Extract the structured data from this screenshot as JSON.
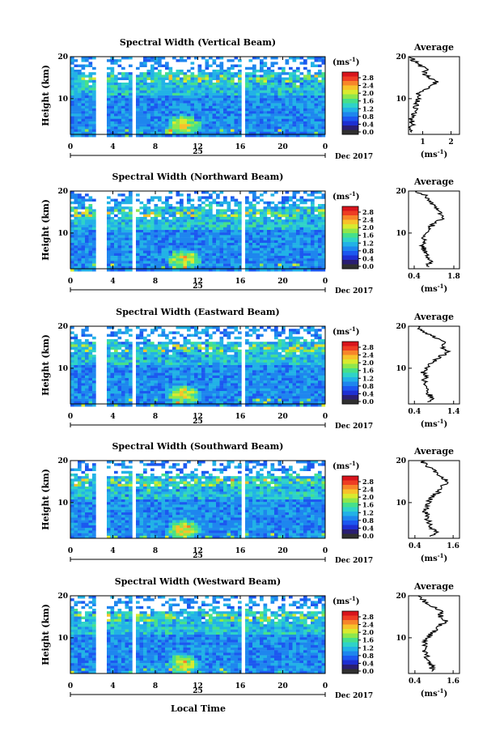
{
  "chart_data": [
    {
      "type": "heatmap",
      "title": "Spectral Width (Vertical Beam)",
      "ylabel": "Height (km)",
      "xticks": [
        "0",
        "4",
        "8",
        "12",
        "16",
        "20",
        "0"
      ],
      "yticks": [
        "20",
        "10"
      ],
      "day_label": "25",
      "month_label": "Dec 2017",
      "colorbar": {
        "unit": "(ms",
        "unit_exp": "-1",
        "unit_close": ")",
        "ticks": [
          "2.8",
          "2.4",
          "2.0",
          "1.6",
          "1.2",
          "0.8",
          "0.4",
          "0.0"
        ]
      },
      "gaps_hours": [
        [
          2.4,
          3.4
        ],
        [
          5.5,
          5.9
        ],
        [
          15.9,
          16.4
        ],
        [
          17.5,
          17.8
        ]
      ],
      "xlim": [
        0,
        24
      ],
      "ylim": [
        1.5,
        20
      ],
      "avg": {
        "title": "Average",
        "xticks": [
          "1",
          "2"
        ],
        "xtick_vals": [
          1,
          2
        ],
        "xlim": [
          0.5,
          2.3
        ],
        "yticks": [
          "20",
          "10"
        ],
        "xlabel": "(ms",
        "xlabel_exp": "-1",
        "xlabel_close": ")",
        "profile": [
          [
            2,
            0.62
          ],
          [
            3,
            0.6
          ],
          [
            4,
            0.64
          ],
          [
            5,
            0.58
          ],
          [
            6,
            0.7
          ],
          [
            7,
            0.75
          ],
          [
            8,
            0.72
          ],
          [
            9,
            0.8
          ],
          [
            10,
            0.85
          ],
          [
            11,
            0.82
          ],
          [
            12,
            1.0
          ],
          [
            13,
            1.25
          ],
          [
            14,
            1.5
          ],
          [
            15,
            1.2
          ],
          [
            16,
            1.05
          ],
          [
            17,
            1.1
          ],
          [
            18,
            0.9
          ],
          [
            19,
            0.7
          ],
          [
            20,
            0.55
          ]
        ]
      }
    },
    {
      "type": "heatmap",
      "title": "Spectral Width (Northward Beam)",
      "ylabel": "Height (km)",
      "xticks": [
        "0",
        "4",
        "8",
        "12",
        "16",
        "20",
        "0"
      ],
      "yticks": [
        "20",
        "10"
      ],
      "day_label": "25",
      "month_label": "Dec 2017",
      "colorbar": {
        "unit": "(ms",
        "unit_exp": "-1",
        "unit_close": ")",
        "ticks": [
          "2.8",
          "2.4",
          "2.0",
          "1.6",
          "1.2",
          "0.8",
          "0.4",
          "0.0"
        ]
      },
      "gaps_hours": [
        [
          2.4,
          3.4
        ],
        [
          5.5,
          5.9
        ],
        [
          15.9,
          16.4
        ],
        [
          17.5,
          17.8
        ]
      ],
      "xlim": [
        0,
        24
      ],
      "ylim": [
        1.5,
        20
      ],
      "avg": {
        "title": "Average",
        "xticks": [
          "0.4",
          "1.8"
        ],
        "xtick_vals": [
          0.4,
          1.8
        ],
        "xlim": [
          0.2,
          2.0
        ],
        "yticks": [
          "20",
          "10"
        ],
        "xlabel": "(ms",
        "xlabel_exp": "-1",
        "xlabel_close": ")",
        "profile": [
          [
            2,
            0.85
          ],
          [
            3,
            1.0
          ],
          [
            4,
            0.9
          ],
          [
            5,
            0.85
          ],
          [
            6,
            0.75
          ],
          [
            7,
            0.7
          ],
          [
            8,
            0.75
          ],
          [
            9,
            0.7
          ],
          [
            10,
            0.8
          ],
          [
            11,
            0.9
          ],
          [
            12,
            1.05
          ],
          [
            13,
            1.3
          ],
          [
            14,
            1.5
          ],
          [
            15,
            1.25
          ],
          [
            16,
            1.2
          ],
          [
            17,
            1.0
          ],
          [
            18,
            0.85
          ],
          [
            19,
            0.75
          ],
          [
            20,
            0.5
          ]
        ]
      }
    },
    {
      "type": "heatmap",
      "title": "Spectral Width (Eastward Beam)",
      "ylabel": "Height (km)",
      "xticks": [
        "0",
        "4",
        "8",
        "12",
        "16",
        "20",
        "0"
      ],
      "yticks": [
        "20",
        "10"
      ],
      "day_label": "25",
      "month_label": "Dec 2017",
      "colorbar": {
        "unit": "(ms",
        "unit_exp": "-1",
        "unit_close": ")",
        "ticks": [
          "2.8",
          "2.4",
          "2.0",
          "1.6",
          "1.2",
          "0.8",
          "0.4",
          "0.0"
        ]
      },
      "gaps_hours": [
        [
          2.4,
          3.4
        ],
        [
          5.5,
          5.9
        ],
        [
          15.9,
          16.4
        ],
        [
          17.5,
          17.8
        ]
      ],
      "xlim": [
        0,
        24
      ],
      "ylim": [
        1.5,
        20
      ],
      "avg": {
        "title": "Average",
        "xticks": [
          "0.4",
          "1.4"
        ],
        "xtick_vals": [
          0.4,
          1.4
        ],
        "xlim": [
          0.25,
          1.55
        ],
        "yticks": [
          "20",
          "10"
        ],
        "xlabel": "(ms",
        "xlabel_exp": "-1",
        "xlabel_close": ")",
        "profile": [
          [
            2,
            0.8
          ],
          [
            3,
            0.85
          ],
          [
            4,
            0.75
          ],
          [
            5,
            0.7
          ],
          [
            6,
            0.72
          ],
          [
            7,
            0.65
          ],
          [
            8,
            0.68
          ],
          [
            9,
            0.62
          ],
          [
            10,
            0.7
          ],
          [
            11,
            0.8
          ],
          [
            12,
            0.95
          ],
          [
            13,
            1.1
          ],
          [
            14,
            1.25
          ],
          [
            15,
            1.1
          ],
          [
            16,
            1.2
          ],
          [
            17,
            1.0
          ],
          [
            18,
            0.8
          ],
          [
            19,
            0.6
          ],
          [
            20,
            0.5
          ]
        ]
      }
    },
    {
      "type": "heatmap",
      "title": "Spectral Width (Southward Beam)",
      "ylabel": "Height (km)",
      "xticks": [
        "0",
        "4",
        "8",
        "12",
        "16",
        "20",
        "0"
      ],
      "yticks": [
        "20",
        "10"
      ],
      "day_label": "25",
      "month_label": "Dec 2017",
      "colorbar": {
        "unit": "(ms",
        "unit_exp": "-1",
        "unit_close": ")",
        "ticks": [
          "2.8",
          "2.4",
          "2.0",
          "1.6",
          "1.2",
          "0.8",
          "0.4",
          "0.0"
        ]
      },
      "gaps_hours": [
        [
          2.4,
          3.4
        ],
        [
          5.5,
          5.9
        ],
        [
          15.9,
          16.4
        ],
        [
          17.5,
          17.8
        ]
      ],
      "xlim": [
        0,
        24
      ],
      "ylim": [
        1.5,
        20
      ],
      "avg": {
        "title": "Average",
        "xticks": [
          "0.4",
          "1.6"
        ],
        "xtick_vals": [
          0.4,
          1.6
        ],
        "xlim": [
          0.2,
          1.8
        ],
        "yticks": [
          "20",
          "10"
        ],
        "xlabel": "(ms",
        "xlabel_exp": "-1",
        "xlabel_close": ")",
        "profile": [
          [
            2,
            0.95
          ],
          [
            3,
            1.05
          ],
          [
            4,
            0.9
          ],
          [
            5,
            0.85
          ],
          [
            6,
            0.8
          ],
          [
            7,
            0.78
          ],
          [
            8,
            0.72
          ],
          [
            9,
            0.75
          ],
          [
            10,
            0.8
          ],
          [
            11,
            0.9
          ],
          [
            12,
            1.05
          ],
          [
            13,
            1.2
          ],
          [
            14,
            1.3
          ],
          [
            15,
            1.45
          ],
          [
            16,
            1.25
          ],
          [
            17,
            1.1
          ],
          [
            18,
            0.9
          ],
          [
            19,
            0.75
          ],
          [
            20,
            0.6
          ]
        ]
      }
    },
    {
      "type": "heatmap",
      "title": "Spectral Width (Westward Beam)",
      "ylabel": "Height (km)",
      "xticks": [
        "0",
        "4",
        "8",
        "12",
        "16",
        "20",
        "0"
      ],
      "yticks": [
        "20",
        "10"
      ],
      "day_label": "25",
      "month_label": "Dec 2017",
      "colorbar": {
        "unit": "(ms",
        "unit_exp": "-1",
        "unit_close": ")",
        "ticks": [
          "2.8",
          "2.4",
          "2.0",
          "1.6",
          "1.2",
          "0.8",
          "0.4",
          "0.0"
        ]
      },
      "gaps_hours": [
        [
          2.4,
          3.4
        ],
        [
          5.5,
          5.9
        ],
        [
          15.9,
          16.4
        ],
        [
          17.5,
          17.8
        ]
      ],
      "xlim": [
        0,
        24
      ],
      "ylim": [
        1.5,
        20
      ],
      "avg": {
        "title": "Average",
        "xticks": [
          "0.4",
          "1.6"
        ],
        "xtick_vals": [
          0.4,
          1.6
        ],
        "xlim": [
          0.2,
          1.8
        ],
        "yticks": [
          "20",
          "10"
        ],
        "xlabel": "(ms",
        "xlabel_exp": "-1",
        "xlabel_close": ")",
        "profile": [
          [
            2,
            0.9
          ],
          [
            3,
            0.95
          ],
          [
            4,
            0.85
          ],
          [
            5,
            0.8
          ],
          [
            6,
            0.75
          ],
          [
            7,
            0.72
          ],
          [
            8,
            0.7
          ],
          [
            9,
            0.72
          ],
          [
            10,
            0.8
          ],
          [
            11,
            0.9
          ],
          [
            12,
            1.05
          ],
          [
            13,
            1.2
          ],
          [
            14,
            1.35
          ],
          [
            15,
            1.2
          ],
          [
            16,
            1.25
          ],
          [
            17,
            1.05
          ],
          [
            18,
            0.8
          ],
          [
            19,
            0.65
          ],
          [
            20,
            0.5
          ]
        ]
      }
    }
  ],
  "xlabel_bottom": "Local Time"
}
